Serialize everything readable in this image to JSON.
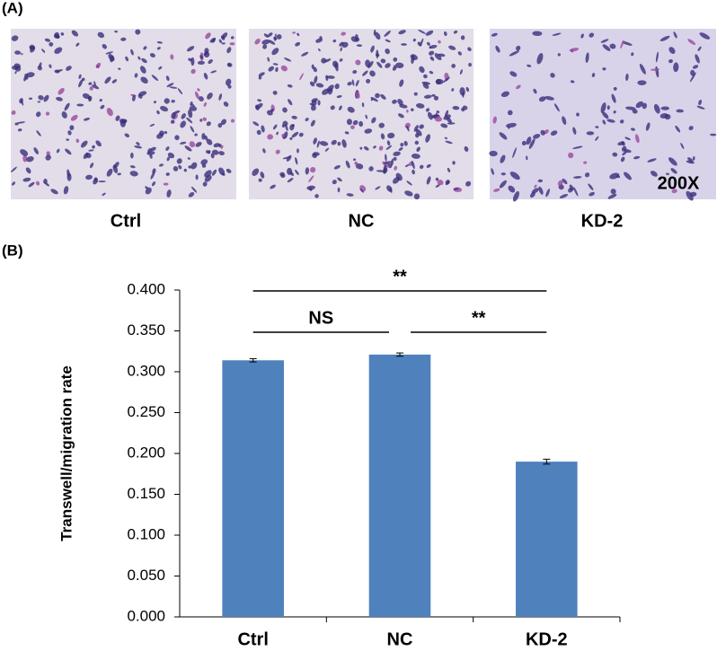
{
  "panel_a": {
    "label": "(A)",
    "captions": [
      "Ctrl",
      "NC",
      "KD-2"
    ],
    "magnification": "200X"
  },
  "panel_b_label": "(B)",
  "chart_data": {
    "type": "bar",
    "ylabel": "Transwell/migration rate",
    "categories": [
      "Ctrl",
      "NC",
      "KD-2"
    ],
    "values": [
      0.314,
      0.321,
      0.19
    ],
    "errors": [
      0.002,
      0.002,
      0.003
    ],
    "color": "#4f81bd",
    "ylim": [
      0,
      0.4
    ],
    "yticks": [
      {
        "value": 0,
        "label": "0.000"
      },
      {
        "value": 0.05,
        "label": "0.050"
      },
      {
        "value": 0.1,
        "label": "0.100"
      },
      {
        "value": 0.15,
        "label": "0.150"
      },
      {
        "value": 0.2,
        "label": "0.200"
      },
      {
        "value": 0.25,
        "label": "0.250"
      },
      {
        "value": 0.3,
        "label": "0.300"
      },
      {
        "value": 0.35,
        "label": "0.350"
      },
      {
        "value": 0.4,
        "label": "0.400"
      }
    ],
    "annotations": [
      {
        "text": "**",
        "between": [
          "Ctrl",
          "KD-2"
        ]
      },
      {
        "text": "NS",
        "between": [
          "Ctrl",
          "NC"
        ]
      },
      {
        "text": "**",
        "between": [
          "NC",
          "KD-2"
        ]
      }
    ]
  }
}
